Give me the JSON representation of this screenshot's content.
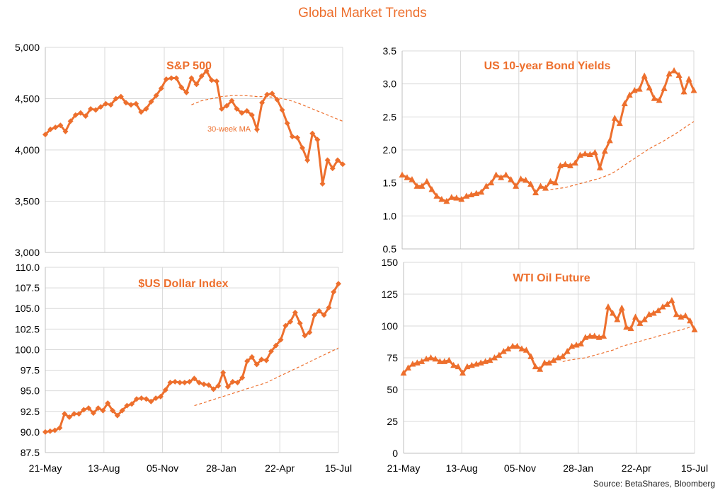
{
  "title": "Global Market Trends",
  "source": "Source: BetaShares, Bloomberg",
  "colors": {
    "accent": "#ED6F2D",
    "grid": "#d9d9d9",
    "axis_text": "#000000"
  },
  "x_axis_labels": [
    "21-May",
    "13-Aug",
    "05-Nov",
    "28-Jan",
    "22-Apr",
    "15-Jul"
  ],
  "chart_data": [
    {
      "type": "line",
      "title": "S&P 500",
      "marker": "diamond",
      "ylim": [
        3000,
        5000
      ],
      "yticks": [
        "3,000",
        "3,500",
        "4,000",
        "4,500",
        "5,000"
      ],
      "ytick_values": [
        3000,
        3500,
        4000,
        4500,
        5000
      ],
      "grid": true,
      "annotation": "30-week MA",
      "series": [
        {
          "values": [
            4150,
            4200,
            4220,
            4240,
            4180,
            4280,
            4340,
            4360,
            4330,
            4400,
            4390,
            4420,
            4450,
            4440,
            4500,
            4520,
            4460,
            4440,
            4450,
            4370,
            4400,
            4470,
            4530,
            4600,
            4690,
            4700,
            4700,
            4610,
            4560,
            4700,
            4640,
            4720,
            4770,
            4680,
            4670,
            4400,
            4430,
            4480,
            4400,
            4360,
            4380,
            4340,
            4200,
            4460,
            4540,
            4550,
            4490,
            4390,
            4260,
            4130,
            4120,
            4020,
            3900,
            4160,
            4100,
            3670,
            3900,
            3820,
            3900,
            3860
          ]
        },
        {
          "values": [
            null,
            null,
            null,
            null,
            null,
            null,
            null,
            null,
            null,
            null,
            null,
            null,
            null,
            null,
            null,
            null,
            null,
            null,
            null,
            null,
            null,
            null,
            null,
            null,
            null,
            null,
            null,
            null,
            null,
            4440,
            4460,
            4480,
            4490,
            4500,
            4510,
            4520,
            4525,
            4530,
            4532,
            4530,
            4528,
            4525,
            4520,
            4520,
            4518,
            4515,
            4510,
            4500,
            4490,
            4475,
            4460,
            4440,
            4420,
            4400,
            4380,
            4360,
            4340,
            4320,
            4300,
            4280
          ]
        }
      ]
    },
    {
      "type": "line",
      "title": "US 10-year Bond Yields",
      "marker": "triangle",
      "ylim": [
        0.5,
        3.5
      ],
      "yticks": [
        "0.5",
        "1.0",
        "1.5",
        "2.0",
        "2.5",
        "3.0",
        "3.5"
      ],
      "ytick_values": [
        0.5,
        1.0,
        1.5,
        2.0,
        2.5,
        3.0,
        3.5
      ],
      "grid": true,
      "series": [
        {
          "values": [
            1.62,
            1.58,
            1.55,
            1.45,
            1.45,
            1.52,
            1.4,
            1.3,
            1.25,
            1.22,
            1.28,
            1.27,
            1.25,
            1.3,
            1.32,
            1.34,
            1.36,
            1.45,
            1.5,
            1.62,
            1.58,
            1.62,
            1.55,
            1.45,
            1.56,
            1.54,
            1.48,
            1.35,
            1.45,
            1.42,
            1.52,
            1.5,
            1.76,
            1.78,
            1.76,
            1.8,
            1.92,
            1.94,
            1.93,
            1.96,
            1.73,
            1.98,
            2.14,
            2.48,
            2.4,
            2.7,
            2.83,
            2.9,
            2.92,
            3.12,
            2.94,
            2.78,
            2.75,
            2.93,
            3.15,
            3.2,
            3.13,
            2.88,
            3.07,
            2.9
          ]
        },
        {
          "values": [
            null,
            null,
            null,
            null,
            null,
            null,
            null,
            null,
            null,
            null,
            null,
            null,
            null,
            null,
            null,
            null,
            null,
            null,
            null,
            null,
            null,
            null,
            null,
            null,
            null,
            null,
            null,
            null,
            null,
            null,
            1.4,
            1.41,
            1.42,
            1.43,
            1.45,
            1.47,
            1.49,
            1.51,
            1.53,
            1.55,
            1.57,
            1.6,
            1.63,
            1.67,
            1.72,
            1.77,
            1.82,
            1.87,
            1.92,
            1.97,
            2.02,
            2.06,
            2.1,
            2.14,
            2.19,
            2.23,
            2.28,
            2.33,
            2.38,
            2.43
          ]
        }
      ]
    },
    {
      "type": "line",
      "title": "$US Dollar Index",
      "marker": "diamond",
      "ylim": [
        87.5,
        110.0
      ],
      "yticks": [
        "87.5",
        "90.0",
        "92.5",
        "95.0",
        "97.5",
        "100.0",
        "102.5",
        "105.0",
        "107.5",
        "110.0"
      ],
      "ytick_values": [
        87.5,
        90.0,
        92.5,
        95.0,
        97.5,
        100.0,
        102.5,
        105.0,
        107.5,
        110.0
      ],
      "grid": true,
      "series": [
        {
          "values": [
            90.0,
            90.1,
            90.2,
            90.5,
            92.2,
            91.8,
            92.2,
            92.2,
            92.7,
            92.9,
            92.3,
            92.9,
            92.6,
            93.5,
            92.6,
            92.0,
            92.6,
            93.2,
            93.4,
            94.0,
            94.1,
            94.0,
            93.7,
            94.1,
            94.3,
            95.1,
            96.0,
            96.1,
            96.0,
            96.0,
            96.1,
            96.5,
            96.0,
            95.8,
            95.7,
            95.2,
            95.6,
            97.2,
            95.5,
            96.1,
            96.0,
            96.6,
            98.6,
            99.1,
            98.2,
            98.8,
            98.7,
            99.8,
            100.5,
            101.2,
            102.9,
            103.4,
            104.5,
            103.2,
            101.7,
            102.1,
            104.2,
            104.7,
            104.2,
            105.1,
            107.0,
            108.0
          ]
        },
        {
          "values": [
            null,
            null,
            null,
            null,
            null,
            null,
            null,
            null,
            null,
            null,
            null,
            null,
            null,
            null,
            null,
            null,
            null,
            null,
            null,
            null,
            null,
            null,
            null,
            null,
            null,
            null,
            null,
            null,
            null,
            93.2,
            93.4,
            93.6,
            93.8,
            94.0,
            94.2,
            94.4,
            94.6,
            94.8,
            95.0,
            95.2,
            95.4,
            95.6,
            95.8,
            96.0,
            96.3,
            96.6,
            96.9,
            97.2,
            97.5,
            97.8,
            98.1,
            98.4,
            98.7,
            99.0,
            99.3,
            99.6,
            99.9,
            100.2
          ]
        }
      ]
    },
    {
      "type": "line",
      "title": "WTI Oil Future",
      "marker": "triangle",
      "ylim": [
        0,
        150
      ],
      "yticks": [
        "0",
        "25",
        "50",
        "75",
        "100",
        "125",
        "150"
      ],
      "ytick_values": [
        0,
        25,
        50,
        75,
        100,
        125,
        150
      ],
      "grid": true,
      "series": [
        {
          "values": [
            63,
            67,
            70,
            71,
            72,
            74,
            75,
            74,
            72,
            72,
            73,
            69,
            68,
            63,
            68,
            69,
            70,
            71,
            72,
            73,
            75,
            77,
            80,
            82,
            84,
            84,
            82,
            81,
            76,
            68,
            66,
            71,
            71,
            73,
            75,
            76,
            80,
            84,
            85,
            86,
            91,
            92,
            92,
            91,
            92,
            115,
            110,
            105,
            114,
            99,
            98,
            107,
            102,
            105,
            109,
            110,
            112,
            115,
            117,
            120,
            109,
            107,
            108,
            104,
            97
          ]
        },
        {
          "values": [
            null,
            null,
            null,
            null,
            null,
            null,
            null,
            null,
            null,
            null,
            null,
            null,
            null,
            null,
            null,
            null,
            null,
            null,
            null,
            null,
            null,
            null,
            null,
            null,
            null,
            null,
            null,
            null,
            null,
            null,
            null,
            null,
            null,
            null,
            null,
            72,
            73,
            73.5,
            74,
            74.5,
            75,
            76,
            77,
            78,
            79,
            80,
            81,
            82.5,
            84,
            85,
            86,
            87,
            88,
            89,
            90,
            91,
            92,
            93,
            94,
            95,
            96,
            97,
            98,
            99,
            100
          ]
        }
      ]
    }
  ]
}
